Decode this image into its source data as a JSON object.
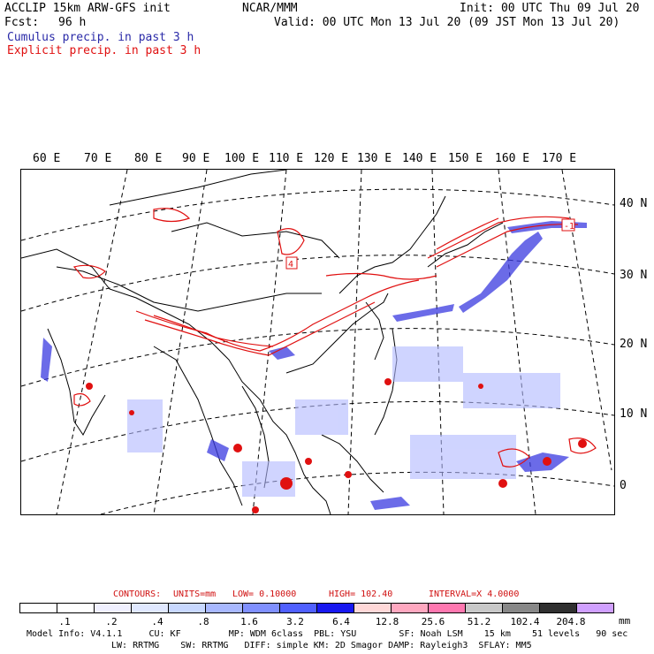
{
  "header": {
    "title_left": "ACCLIP 15km ARW-GFS init",
    "org": "NCAR/MMM",
    "init": "Init: 00 UTC Thu 09 Jul 20",
    "fcst_label": "Fcst:",
    "fcst_value": "96 h",
    "valid": "Valid: 00 UTC Mon 13 Jul 20 (09 JST Mon 13 Jul 20)",
    "cumulus": "Cumulus precip. in past 3 h",
    "explicit": "Explicit precip. in past 3 h"
  },
  "map": {
    "lon_labels": [
      "60 E",
      "70 E",
      "80 E",
      "90 E",
      "100 E",
      "110 E",
      "120 E",
      "130 E",
      "140 E",
      "150 E",
      "160 E",
      "170 E"
    ],
    "lat_labels": [
      "40 N",
      "30 N",
      "20 N",
      "10 N",
      "0"
    ],
    "markers": [
      "4",
      "-1"
    ],
    "colors": {
      "cumulus": "#3a3ae0",
      "explicit": "#e01010",
      "coast": "#000000",
      "grid": "#000000"
    }
  },
  "contours": {
    "label": "CONTOURS:",
    "units": "UNITS=mm",
    "low": "LOW= 0.10000",
    "high": "HIGH= 102.40",
    "interval": "INTERVAL=X 4.0000"
  },
  "legend": {
    "colors": [
      "#ffffff",
      "#ffffff",
      "#f0f0ff",
      "#e0e8ff",
      "#c8d8ff",
      "#a8b8ff",
      "#8090ff",
      "#5060ff",
      "#1818f0",
      "#ffd8d8",
      "#ffa8c0",
      "#ff78b0",
      "#c8c8c8",
      "#888888",
      "#303030",
      "#d0a0ff"
    ],
    "ticks": [
      ".1",
      ".2",
      ".4",
      ".8",
      "1.6",
      "3.2",
      "6.4",
      "12.8",
      "25.6",
      "51.2",
      "102.4",
      "204.8"
    ],
    "units": "mm"
  },
  "model_info": {
    "line1": "Model Info: V4.1.1     CU: KF         MP: WDM 6class  PBL: YSU        SF: Noah LSM    15 km    51 levels   90 sec",
    "line2": "LW: RRTMG    SW: RRTMG   DIFF: simple KM: 2D Smagor DAMP: Rayleigh3  SFLAY: MM5"
  }
}
